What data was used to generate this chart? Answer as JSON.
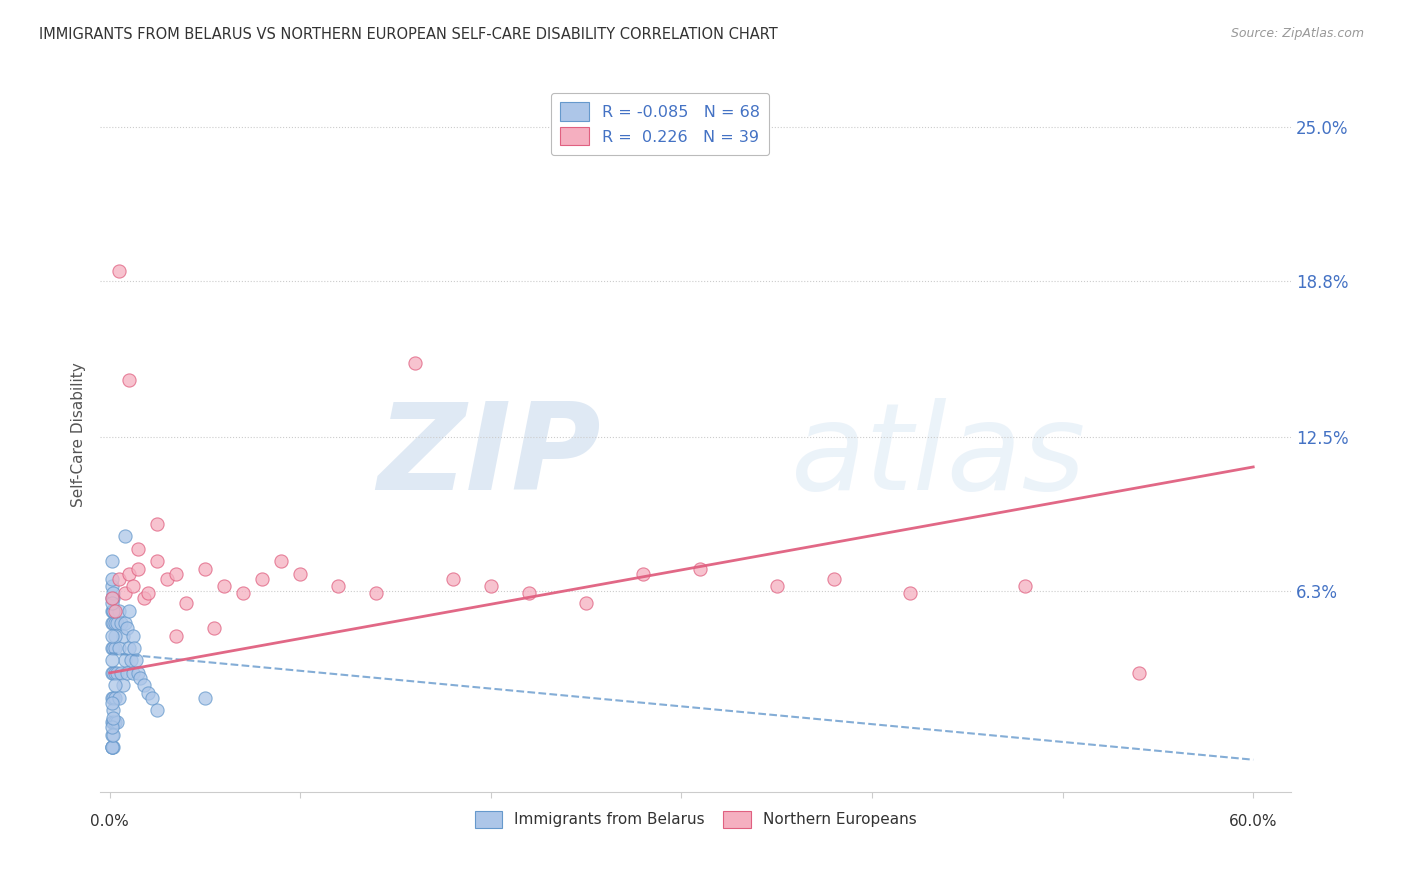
{
  "title": "IMMIGRANTS FROM BELARUS VS NORTHERN EUROPEAN SELF-CARE DISABILITY CORRELATION CHART",
  "source": "Source: ZipAtlas.com",
  "ylabel": "Self-Care Disability",
  "xlim": [
    -0.005,
    0.62
  ],
  "ylim": [
    -0.018,
    0.27
  ],
  "blue_R": -0.085,
  "blue_N": 68,
  "pink_R": 0.226,
  "pink_N": 39,
  "blue_color": "#adc6e8",
  "pink_color": "#f5afc0",
  "blue_edge_color": "#6699cc",
  "pink_edge_color": "#e06080",
  "blue_line_color": "#6699cc",
  "pink_line_color": "#e06080",
  "watermark_color": "#c5d8ee",
  "ytick_color": "#4472c4",
  "grid_color": "#cccccc",
  "title_color": "#333333",
  "source_color": "#999999",
  "label_color": "#555555",
  "blue_trend_start_y": 0.038,
  "blue_trend_end_y": -0.005,
  "pink_trend_start_y": 0.03,
  "pink_trend_end_y": 0.113,
  "blue_x": [
    0.001,
    0.001,
    0.001,
    0.001,
    0.001,
    0.001,
    0.001,
    0.001,
    0.001,
    0.001,
    0.002,
    0.002,
    0.002,
    0.002,
    0.002,
    0.002,
    0.002,
    0.002,
    0.003,
    0.003,
    0.003,
    0.003,
    0.003,
    0.004,
    0.004,
    0.004,
    0.005,
    0.005,
    0.005,
    0.006,
    0.006,
    0.007,
    0.007,
    0.008,
    0.008,
    0.009,
    0.009,
    0.01,
    0.01,
    0.011,
    0.012,
    0.012,
    0.013,
    0.014,
    0.015,
    0.016,
    0.018,
    0.02,
    0.022,
    0.025,
    0.001,
    0.001,
    0.002,
    0.002,
    0.003,
    0.003,
    0.001,
    0.001,
    0.002,
    0.001,
    0.001,
    0.002,
    0.001,
    0.001,
    0.002,
    0.001,
    0.008,
    0.05
  ],
  "blue_y": [
    0.0,
    0.0,
    0.01,
    0.02,
    0.03,
    0.04,
    0.05,
    0.055,
    0.06,
    0.065,
    0.0,
    0.01,
    0.02,
    0.03,
    0.04,
    0.05,
    0.055,
    0.06,
    0.01,
    0.02,
    0.03,
    0.04,
    0.05,
    0.01,
    0.03,
    0.05,
    0.02,
    0.04,
    0.055,
    0.03,
    0.05,
    0.025,
    0.045,
    0.035,
    0.05,
    0.03,
    0.048,
    0.04,
    0.055,
    0.035,
    0.03,
    0.045,
    0.04,
    0.035,
    0.03,
    0.028,
    0.025,
    0.022,
    0.02,
    0.015,
    0.0,
    0.005,
    0.005,
    0.015,
    0.025,
    0.045,
    0.068,
    0.075,
    0.062,
    0.035,
    0.045,
    0.055,
    0.058,
    0.008,
    0.012,
    0.018,
    0.085,
    0.02
  ],
  "pink_x": [
    0.001,
    0.003,
    0.005,
    0.008,
    0.01,
    0.012,
    0.015,
    0.018,
    0.02,
    0.025,
    0.03,
    0.035,
    0.04,
    0.05,
    0.06,
    0.07,
    0.08,
    0.09,
    0.1,
    0.12,
    0.14,
    0.16,
    0.18,
    0.2,
    0.22,
    0.25,
    0.28,
    0.31,
    0.35,
    0.38,
    0.42,
    0.48,
    0.54,
    0.01,
    0.015,
    0.005,
    0.025,
    0.035,
    0.055
  ],
  "pink_y": [
    0.06,
    0.055,
    0.068,
    0.062,
    0.07,
    0.065,
    0.072,
    0.06,
    0.062,
    0.075,
    0.068,
    0.07,
    0.058,
    0.072,
    0.065,
    0.062,
    0.068,
    0.075,
    0.07,
    0.065,
    0.062,
    0.155,
    0.068,
    0.065,
    0.062,
    0.058,
    0.07,
    0.072,
    0.065,
    0.068,
    0.062,
    0.065,
    0.03,
    0.148,
    0.08,
    0.192,
    0.09,
    0.045,
    0.048
  ]
}
